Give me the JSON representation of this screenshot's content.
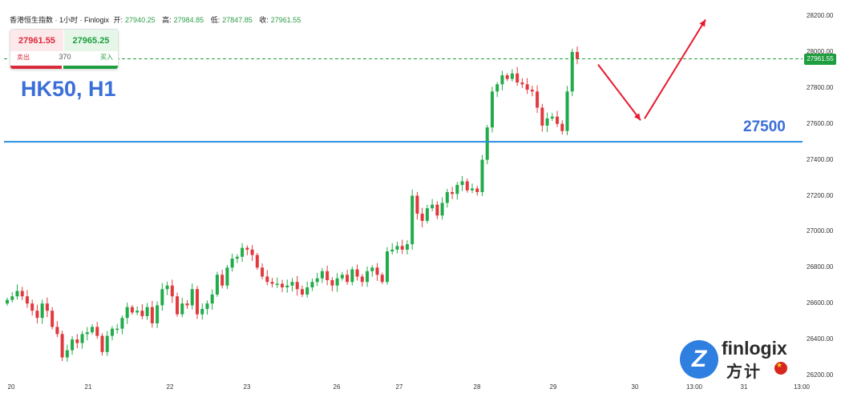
{
  "header": {
    "symbol_name": "香港恒生指数 · 1小时 · Finlogix",
    "open_label": "开:",
    "open": "27940.25",
    "high_label": "高:",
    "high": "27984.85",
    "low_label": "低:",
    "low": "27847.85",
    "close_label": "收:",
    "close": "27961.55"
  },
  "trade": {
    "sell_price": "27961.55",
    "buy_price": "27965.25",
    "sell_label": "卖出",
    "buy_label": "买入",
    "spread": "370"
  },
  "overlay": {
    "symbol_label": "HK50, H1",
    "level_label": "27500",
    "current_price_tag": "27961.55"
  },
  "logo": {
    "text_en": "finlogix",
    "text_cn": "方计",
    "mark": "Z"
  },
  "colors": {
    "up": "#22ab4a",
    "down": "#e03a3e",
    "level_line": "#2a8ee0",
    "arrow": "#e8192c",
    "price_line": "#1e9e3e"
  },
  "chart_data": {
    "type": "candlestick",
    "title": "",
    "ylim": [
      26200,
      28200
    ],
    "y_ticks": [
      "28200.00",
      "28000.00",
      "27800.00",
      "27600.00",
      "27400.00",
      "27200.00",
      "27000.00",
      "26800.00",
      "26600.00",
      "26400.00",
      "26200.00"
    ],
    "x_ticks": [
      "20",
      "21",
      "22",
      "23",
      "26",
      "27",
      "28",
      "29",
      "30",
      "13:00",
      "31",
      "13:00"
    ],
    "horizontal_level": 27500,
    "current_price": 27961.55,
    "forecast_path": [
      27930,
      27620,
      28180
    ],
    "closes": [
      26620,
      26640,
      26670,
      26640,
      26600,
      26560,
      26520,
      26600,
      26560,
      26470,
      26430,
      26300,
      26340,
      26400,
      26380,
      26430,
      26440,
      26470,
      26420,
      26330,
      26420,
      26460,
      26460,
      26520,
      26580,
      26550,
      26560,
      26530,
      26580,
      26490,
      26590,
      26680,
      26700,
      26640,
      26540,
      26600,
      26590,
      26680,
      26540,
      26570,
      26600,
      26650,
      26760,
      26700,
      26800,
      26850,
      26860,
      26910,
      26900,
      26870,
      26800,
      26750,
      26720,
      26710,
      26710,
      26690,
      26700,
      26720,
      26680,
      26650,
      26690,
      26720,
      26740,
      26780,
      26730,
      26700,
      26740,
      26760,
      26720,
      26790,
      26750,
      26720,
      26780,
      26800,
      26760,
      26720,
      26890,
      26900,
      26920,
      26900,
      26930,
      27200,
      27100,
      27060,
      27130,
      27150,
      27090,
      27160,
      27220,
      27210,
      27260,
      27280,
      27230,
      27240,
      27220,
      27400,
      27580,
      27780,
      27820,
      27870,
      27850,
      27880,
      27830,
      27820,
      27790,
      27780,
      27690,
      27590,
      27630,
      27640,
      27600,
      27560,
      27780,
      28000,
      27961
    ]
  }
}
